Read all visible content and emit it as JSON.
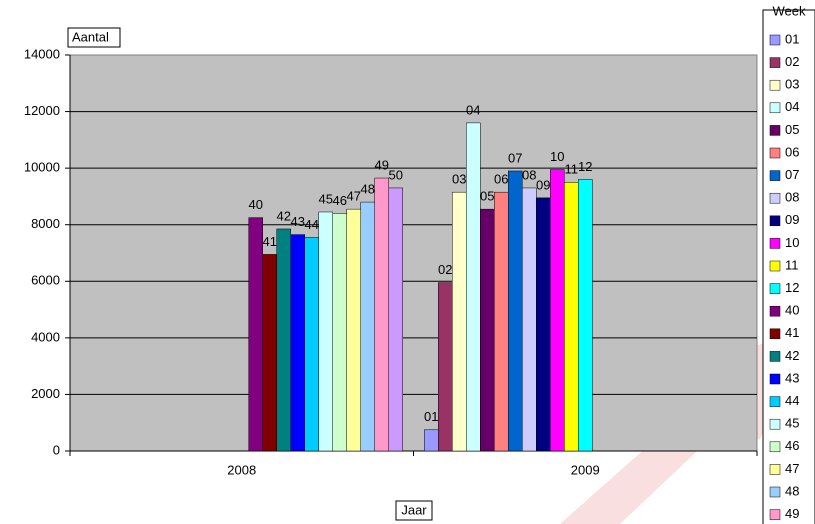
{
  "chart_data": {
    "type": "bar",
    "y_label": "Aantal",
    "x_label": "Jaar",
    "categories": [
      "2008",
      "2009"
    ],
    "ylim": [
      0,
      14000
    ],
    "yticks": [
      0,
      2000,
      4000,
      6000,
      8000,
      10000,
      12000,
      14000
    ],
    "grid": true,
    "legend": "right",
    "legend_title": "Week",
    "series": [
      {
        "name": "01",
        "color": "#9999ff",
        "values": [
          null,
          750
        ]
      },
      {
        "name": "02",
        "color": "#993366",
        "values": [
          null,
          5950
        ]
      },
      {
        "name": "03",
        "color": "#ffffcc",
        "values": [
          null,
          9150
        ]
      },
      {
        "name": "04",
        "color": "#ccffff",
        "values": [
          null,
          11600
        ]
      },
      {
        "name": "05",
        "color": "#660066",
        "values": [
          null,
          8550
        ]
      },
      {
        "name": "06",
        "color": "#ff8080",
        "values": [
          null,
          9150
        ]
      },
      {
        "name": "07",
        "color": "#0066cc",
        "values": [
          null,
          9900
        ]
      },
      {
        "name": "08",
        "color": "#ccccff",
        "values": [
          null,
          9300
        ]
      },
      {
        "name": "09",
        "color": "#000080",
        "values": [
          null,
          8950
        ]
      },
      {
        "name": "10",
        "color": "#ff00ff",
        "values": [
          null,
          9950
        ]
      },
      {
        "name": "11",
        "color": "#ffff00",
        "values": [
          null,
          9500
        ]
      },
      {
        "name": "12",
        "color": "#00ffff",
        "values": [
          null,
          9600
        ]
      },
      {
        "name": "40",
        "color": "#800080",
        "values": [
          8250,
          null
        ]
      },
      {
        "name": "41",
        "color": "#800000",
        "values": [
          6950,
          null
        ]
      },
      {
        "name": "42",
        "color": "#008080",
        "values": [
          7850,
          null
        ]
      },
      {
        "name": "43",
        "color": "#0000ff",
        "values": [
          7650,
          null
        ]
      },
      {
        "name": "44",
        "color": "#00ccff",
        "values": [
          7550,
          null
        ]
      },
      {
        "name": "45",
        "color": "#ccffff",
        "values": [
          8450,
          null
        ]
      },
      {
        "name": "46",
        "color": "#ccffcc",
        "values": [
          8400,
          null
        ]
      },
      {
        "name": "47",
        "color": "#ffff99",
        "values": [
          8550,
          null
        ]
      },
      {
        "name": "48",
        "color": "#99ccff",
        "values": [
          8800,
          null
        ]
      },
      {
        "name": "49",
        "color": "#ff99cc",
        "values": [
          9650,
          null
        ]
      },
      {
        "name": "50",
        "color": "#cc99ff",
        "values": [
          9300,
          null
        ]
      }
    ]
  }
}
